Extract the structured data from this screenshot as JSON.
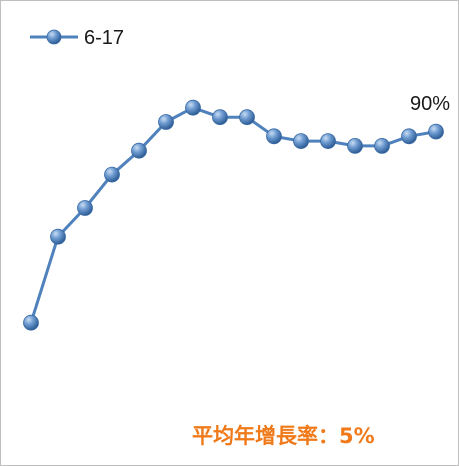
{
  "chart_data": {
    "type": "line",
    "series": [
      {
        "name": "6-17",
        "values": [
          50,
          68,
          74,
          81,
          86,
          92,
          95,
          93,
          93,
          89,
          88,
          88,
          87,
          87,
          89,
          90
        ]
      }
    ],
    "end_label": "90%",
    "annotation": "平均年增長率：5%",
    "line_color": "#4f81bd",
    "annotation_color": "#f07a1a",
    "ylim": [
      20,
      110
    ],
    "grid": false,
    "legend_position": "top-left"
  }
}
